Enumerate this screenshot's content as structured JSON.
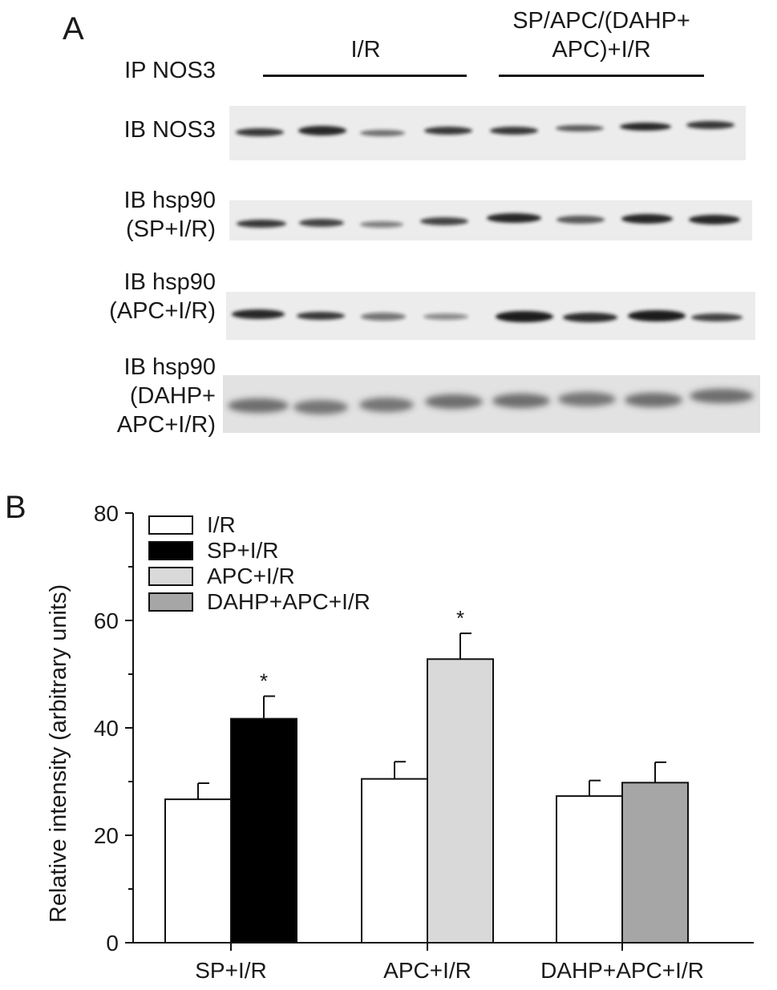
{
  "panel_a": {
    "letter": "A",
    "ip_label": "IP NOS3",
    "groups": [
      {
        "label_lines": [
          "I/R"
        ]
      },
      {
        "label_lines": [
          "SP/APC/(DAHP+",
          "APC)+I/R"
        ]
      }
    ],
    "rows": [
      {
        "label_lines": [
          "IB NOS3"
        ]
      },
      {
        "label_lines": [
          "IB hsp90",
          "(SP+I/R)"
        ]
      },
      {
        "label_lines": [
          "IB hsp90",
          "(APC+I/R)"
        ]
      },
      {
        "label_lines": [
          "IB hsp90",
          "(DAHP+",
          "APC+I/R)"
        ]
      }
    ],
    "band_color": "#1a1a1a",
    "blot_bg": "#ececec"
  },
  "chart_data": {
    "panel_letter": "B",
    "type": "bar",
    "categories": [
      "SP+I/R",
      "APC+I/R",
      "DAHP+APC+I/R"
    ],
    "ylabel": "Relative intensity (arbitrary units)",
    "ylim": [
      0,
      80
    ],
    "yticks": [
      0,
      20,
      40,
      60,
      80
    ],
    "legend_position": "top-left",
    "legend": [
      {
        "label": "I/R",
        "color": "#ffffff"
      },
      {
        "label": "SP+I/R",
        "color": "#000000"
      },
      {
        "label": "APC+I/R",
        "color": "#d9d9d9"
      },
      {
        "label": "DAHP+APC+I/R",
        "color": "#a6a6a6"
      }
    ],
    "bars": [
      {
        "category": "SP+I/R",
        "value": 26.7,
        "error": 3.0,
        "color": "#ffffff",
        "annotation": ""
      },
      {
        "category": "SP+I/R",
        "value": 41.7,
        "error": 4.2,
        "color": "#000000",
        "annotation": "*"
      },
      {
        "category": "APC+I/R",
        "value": 30.5,
        "error": 3.2,
        "color": "#ffffff",
        "annotation": ""
      },
      {
        "category": "APC+I/R",
        "value": 52.8,
        "error": 4.8,
        "color": "#d9d9d9",
        "annotation": "*"
      },
      {
        "category": "DAHP+APC+I/R",
        "value": 27.3,
        "error": 2.9,
        "color": "#ffffff",
        "annotation": ""
      },
      {
        "category": "DAHP+APC+I/R",
        "value": 29.8,
        "error": 3.8,
        "color": "#a6a6a6",
        "annotation": ""
      }
    ],
    "grid": false
  }
}
